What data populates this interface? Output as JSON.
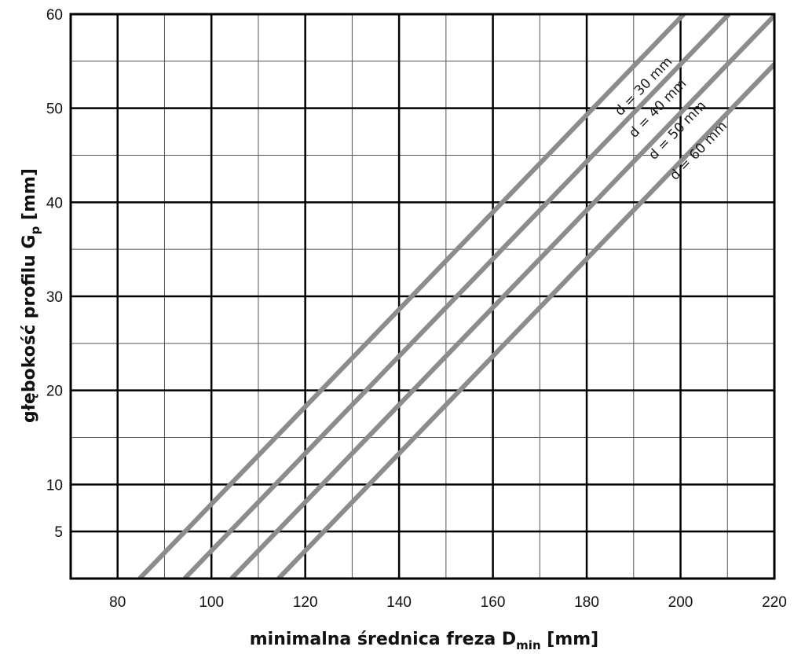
{
  "chart_data": {
    "type": "line",
    "title": "",
    "xlabel": {
      "main": "minimalna średnica freza D",
      "sub": "min",
      "unit": " [mm]"
    },
    "ylabel": {
      "main": "głębokość profilu G",
      "sub": "p",
      "unit": "  [mm]"
    },
    "xlim": [
      70,
      220
    ],
    "ylim": [
      0,
      60
    ],
    "x_ticks": [
      80,
      100,
      120,
      140,
      160,
      180,
      200,
      220
    ],
    "x_tick_labels": [
      "80",
      "100",
      "120",
      "140",
      "160",
      "180",
      "200",
      "220"
    ],
    "y_ticks": [
      5,
      10,
      20,
      30,
      40,
      50,
      60
    ],
    "y_tick_labels": [
      "5",
      "10",
      "20",
      "30",
      "40",
      "50",
      "60"
    ],
    "grid": true,
    "grid_x_step": 10,
    "grid_y_step": 5,
    "series_color": "#8c8c8c",
    "series": [
      {
        "name": "d = 30 mm",
        "x": [
          84.7,
          200.7
        ],
        "y": [
          0,
          60
        ]
      },
      {
        "name": "d = 40 mm",
        "x": [
          94.3,
          210.3
        ],
        "y": [
          0,
          60
        ]
      },
      {
        "name": "d = 50 mm",
        "x": [
          104.3,
          220.3
        ],
        "y": [
          0,
          60
        ]
      },
      {
        "name": "d = 60 mm",
        "x": [
          114.3,
          230.3
        ],
        "y": [
          0,
          60
        ]
      }
    ]
  }
}
